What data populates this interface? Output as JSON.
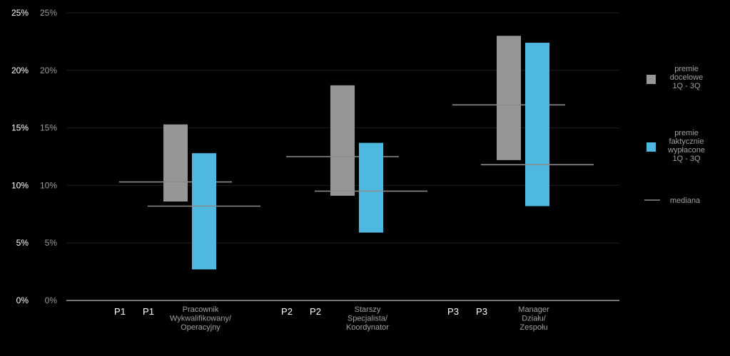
{
  "chart_data": {
    "type": "bar",
    "subtype": "floating-range",
    "ylim": [
      0,
      25
    ],
    "y_ticks": [
      "0%",
      "5%",
      "10%",
      "15%",
      "20%",
      "25%"
    ],
    "y_tick_values": [
      0,
      5,
      10,
      15,
      20,
      25
    ],
    "categories": [
      {
        "codes": [
          "P1",
          "P1"
        ],
        "label_lines": [
          "Pracownik",
          "Wykwalifikowany/",
          "Operacyjny"
        ]
      },
      {
        "codes": [
          "P2",
          "P2"
        ],
        "label_lines": [
          "Starszy",
          "Specjalista/",
          "Koordynator"
        ]
      },
      {
        "codes": [
          "P3",
          "P3"
        ],
        "label_lines": [
          "Manager",
          "Działu/",
          "Zespołu"
        ]
      }
    ],
    "series": [
      {
        "name_lines": [
          "premie",
          "docelowe",
          "1Q - 3Q"
        ],
        "color": "#969696",
        "ranges": [
          [
            8.6,
            15.3
          ],
          [
            9.1,
            18.7
          ],
          [
            12.2,
            23.0
          ]
        ],
        "median": [
          10.3,
          12.5,
          17.0
        ]
      },
      {
        "name_lines": [
          "premie",
          "faktycznie",
          "wypłacone",
          "1Q - 3Q"
        ],
        "color": "#4db8e0",
        "ranges": [
          [
            2.7,
            12.8
          ],
          [
            5.9,
            13.7
          ],
          [
            8.2,
            22.4
          ]
        ],
        "median": [
          8.2,
          9.5,
          11.8
        ]
      }
    ],
    "legend_median_label": "mediana",
    "median_color": "#8c8c8c",
    "grid": true,
    "legend_position": "right"
  }
}
